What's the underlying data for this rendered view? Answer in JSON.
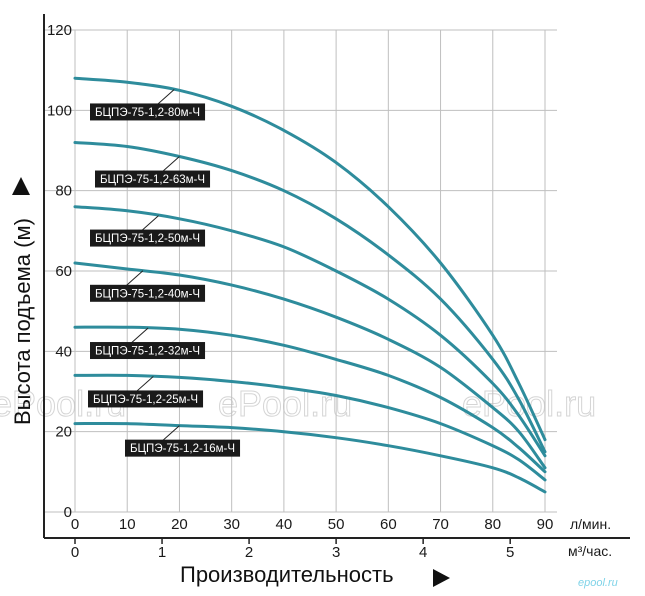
{
  "chart_data": {
    "type": "line",
    "title": "",
    "xlabel": "Производительность",
    "ylabel": "Высота подъема (м)",
    "x_unit_primary": "л/мин.",
    "x_unit_secondary": "м³/час.",
    "xlim": [
      0,
      90
    ],
    "ylim": [
      0,
      120
    ],
    "x_ticks": [
      0,
      10,
      20,
      30,
      40,
      50,
      60,
      70,
      80,
      90
    ],
    "y_ticks": [
      0,
      20,
      40,
      60,
      80,
      100,
      120
    ],
    "x2_ticks": [
      0,
      1,
      2,
      3,
      4,
      5
    ],
    "grid": true,
    "series_color": "#2e8c9c",
    "label_bg": "#1a1a1a",
    "series": [
      {
        "name": "БЦПЭ-75-1,2-80м-Ч",
        "x": [
          0,
          10,
          20,
          30,
          40,
          50,
          60,
          70,
          80,
          85,
          90
        ],
        "y": [
          108,
          107,
          105,
          101,
          95,
          87,
          76,
          62,
          44,
          32,
          18
        ]
      },
      {
        "name": "БЦПЭ-75-1,2-63м-Ч",
        "x": [
          0,
          10,
          20,
          30,
          40,
          50,
          60,
          70,
          80,
          85,
          90
        ],
        "y": [
          92,
          91,
          88.5,
          85,
          80,
          73,
          64,
          53,
          38,
          28,
          15
        ]
      },
      {
        "name": "БЦПЭ-75-1,2-50м-Ч",
        "x": [
          0,
          10,
          20,
          30,
          40,
          50,
          60,
          70,
          80,
          85,
          90
        ],
        "y": [
          76,
          75,
          73,
          70,
          66,
          60,
          53,
          44,
          32,
          24,
          14
        ]
      },
      {
        "name": "БЦПЭ-75-1,2-40м-Ч",
        "x": [
          0,
          10,
          20,
          30,
          40,
          50,
          60,
          70,
          80,
          85,
          90
        ],
        "y": [
          62,
          60.5,
          59,
          56.5,
          53,
          48.5,
          43,
          36,
          26,
          20,
          11
        ]
      },
      {
        "name": "БЦПЭ-75-1,2-32м-Ч",
        "x": [
          0,
          10,
          20,
          30,
          40,
          50,
          60,
          70,
          80,
          85,
          90
        ],
        "y": [
          46,
          46,
          45.5,
          44,
          41.5,
          38,
          34,
          28.5,
          21,
          16,
          10
        ]
      },
      {
        "name": "БЦПЭ-75-1,2-25м-Ч",
        "x": [
          0,
          10,
          20,
          30,
          40,
          50,
          60,
          70,
          80,
          85,
          90
        ],
        "y": [
          34,
          34,
          33.5,
          32.5,
          31,
          29,
          26,
          22,
          16.5,
          13,
          8
        ]
      },
      {
        "name": "БЦПЭ-75-1,2-16м-Ч",
        "x": [
          0,
          10,
          20,
          30,
          40,
          50,
          60,
          70,
          80,
          85,
          90
        ],
        "y": [
          22,
          22,
          21.5,
          21,
          20,
          18.5,
          16.5,
          14,
          11,
          8.5,
          5
        ]
      }
    ],
    "label_anchor_x": [
      19,
      20,
      16,
      13,
      14,
      15,
      20
    ]
  },
  "watermarks": [
    "ePool.ru",
    "ePool.ru",
    "ePool.ru"
  ],
  "brand": "epool.ru"
}
